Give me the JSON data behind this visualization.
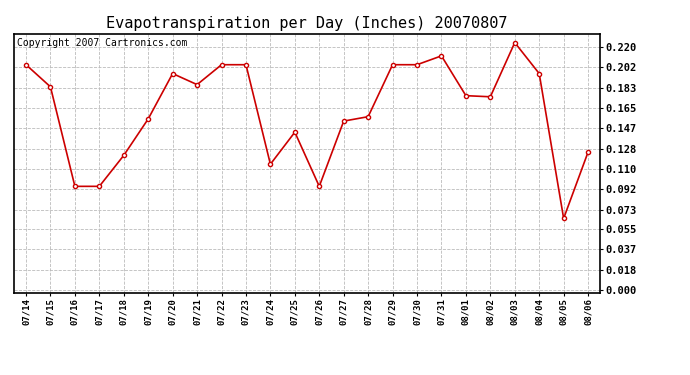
{
  "title": "Evapotranspiration per Day (Inches) 20070807",
  "copyright_text": "Copyright 2007 Cartronics.com",
  "x_labels": [
    "07/14",
    "07/15",
    "07/16",
    "07/17",
    "07/18",
    "07/19",
    "07/20",
    "07/21",
    "07/22",
    "07/23",
    "07/24",
    "07/25",
    "07/26",
    "07/27",
    "07/28",
    "07/29",
    "07/30",
    "07/31",
    "08/01",
    "08/02",
    "08/03",
    "08/04",
    "08/05",
    "08/06"
  ],
  "y_values": [
    0.204,
    0.184,
    0.094,
    0.094,
    0.122,
    0.155,
    0.196,
    0.186,
    0.204,
    0.204,
    0.114,
    0.143,
    0.094,
    0.153,
    0.157,
    0.204,
    0.204,
    0.212,
    0.176,
    0.175,
    0.224,
    0.196,
    0.065,
    0.125
  ],
  "line_color": "#CC0000",
  "marker_size": 3,
  "background_color": "#FFFFFF",
  "grid_color": "#BBBBBB",
  "yticks": [
    0.0,
    0.018,
    0.037,
    0.055,
    0.073,
    0.092,
    0.11,
    0.128,
    0.147,
    0.165,
    0.183,
    0.202,
    0.22
  ],
  "title_fontsize": 11,
  "copyright_fontsize": 7
}
